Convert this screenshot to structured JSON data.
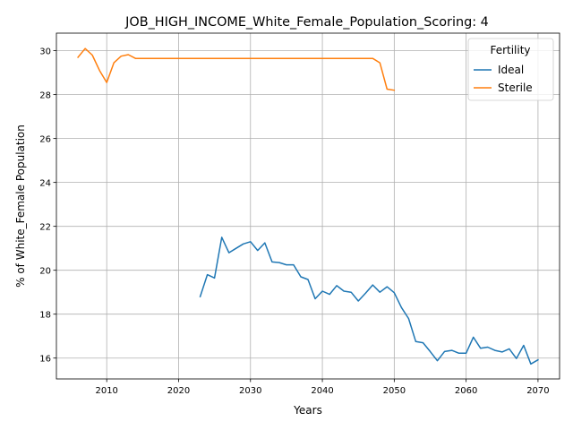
{
  "chart_data": {
    "type": "line",
    "title": "JOB_HIGH_INCOME_White_Female_Population_Scoring: 4",
    "xlabel": "Years",
    "ylabel": "% of White_Female Population",
    "xlim": [
      2003,
      2073
    ],
    "ylim": [
      15.05,
      30.8
    ],
    "xticks": [
      2010,
      2020,
      2030,
      2040,
      2050,
      2060,
      2070
    ],
    "yticks": [
      16,
      18,
      20,
      22,
      24,
      26,
      28,
      30
    ],
    "grid": true,
    "legend": {
      "title": "Fertility",
      "position": "top-right"
    },
    "series": [
      {
        "name": "Ideal",
        "color": "#1f77b4",
        "x": [
          2023,
          2024,
          2025,
          2026,
          2027,
          2028,
          2029,
          2030,
          2031,
          2032,
          2033,
          2034,
          2035,
          2036,
          2037,
          2038,
          2039,
          2040,
          2041,
          2042,
          2043,
          2044,
          2045,
          2046,
          2047,
          2048,
          2049,
          2050,
          2051,
          2052,
          2053,
          2054,
          2055,
          2056,
          2057,
          2058,
          2059,
          2060,
          2061,
          2062,
          2063,
          2064,
          2065,
          2066,
          2067,
          2068,
          2069,
          2070
        ],
        "y": [
          18.8,
          19.8,
          19.65,
          21.5,
          20.8,
          21.0,
          21.2,
          21.3,
          20.9,
          21.25,
          20.38,
          20.35,
          20.25,
          20.25,
          19.7,
          19.58,
          18.7,
          19.05,
          18.9,
          19.3,
          19.05,
          19.0,
          18.6,
          18.95,
          19.33,
          19.0,
          19.25,
          18.98,
          18.3,
          17.8,
          16.75,
          16.7,
          16.3,
          15.88,
          16.3,
          16.35,
          16.22,
          16.22,
          16.95,
          16.45,
          16.5,
          16.35,
          16.28,
          16.42,
          15.98,
          16.58,
          15.73,
          15.92
        ]
      },
      {
        "name": "Sterile",
        "color": "#ff7f0e",
        "x": [
          2006,
          2007,
          2008,
          2009,
          2010,
          2011,
          2012,
          2013,
          2014,
          2015,
          2016,
          2017,
          2018,
          2019,
          2020,
          2021,
          2022,
          2023,
          2024,
          2025,
          2026,
          2027,
          2028,
          2029,
          2030,
          2031,
          2032,
          2033,
          2034,
          2035,
          2036,
          2037,
          2038,
          2039,
          2040,
          2041,
          2042,
          2043,
          2044,
          2045,
          2046,
          2047,
          2048,
          2049,
          2050
        ],
        "y": [
          29.7,
          30.1,
          29.8,
          29.1,
          28.55,
          29.45,
          29.75,
          29.82,
          29.65,
          29.65,
          29.65,
          29.65,
          29.65,
          29.65,
          29.65,
          29.65,
          29.65,
          29.65,
          29.65,
          29.65,
          29.65,
          29.65,
          29.65,
          29.65,
          29.65,
          29.65,
          29.65,
          29.65,
          29.65,
          29.65,
          29.65,
          29.65,
          29.65,
          29.65,
          29.65,
          29.65,
          29.65,
          29.65,
          29.65,
          29.65,
          29.65,
          29.65,
          29.45,
          28.25,
          28.2
        ]
      }
    ]
  }
}
